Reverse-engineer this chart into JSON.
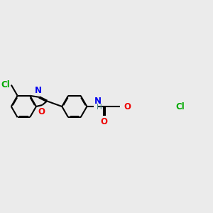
{
  "bg_color": "#ebebeb",
  "bond_color": "#000000",
  "bond_width": 1.5,
  "atom_colors": {
    "Cl": "#00aa00",
    "N": "#0000ee",
    "O": "#ee0000",
    "H": "#4a8a8a",
    "C": "#000000"
  },
  "font_size": 8.5,
  "fig_size": [
    3.0,
    3.0
  ],
  "dpi": 100
}
